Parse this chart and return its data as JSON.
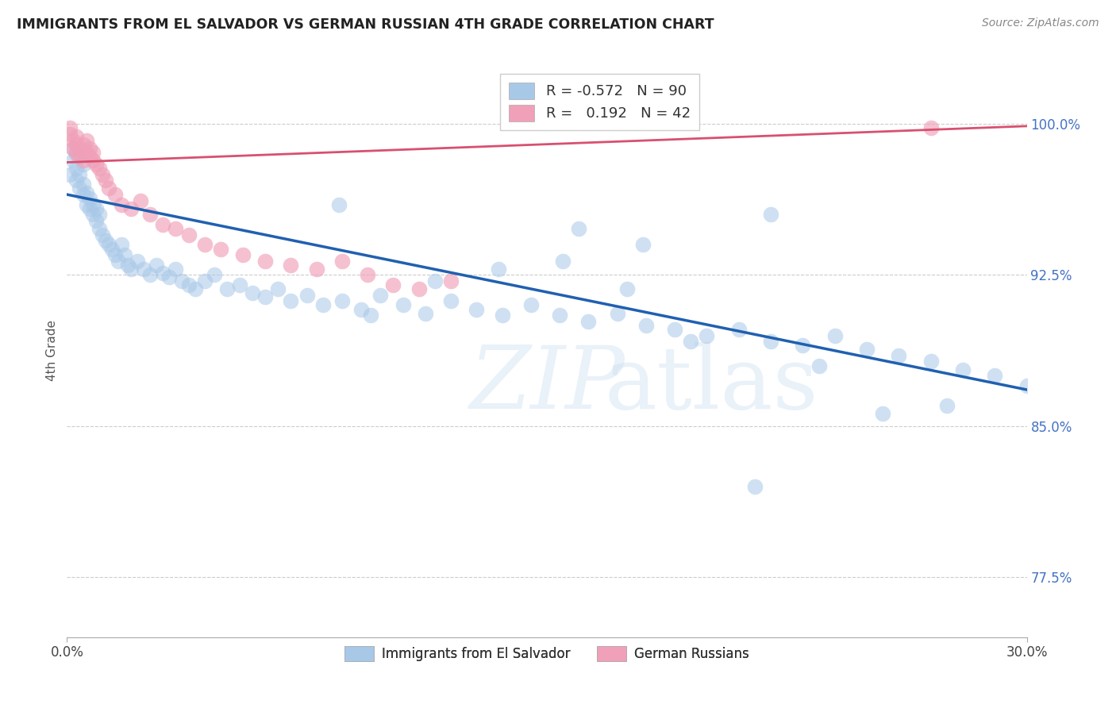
{
  "title": "IMMIGRANTS FROM EL SALVADOR VS GERMAN RUSSIAN 4TH GRADE CORRELATION CHART",
  "source": "Source: ZipAtlas.com",
  "ylabel": "4th Grade",
  "yticks": [
    0.775,
    0.85,
    0.925,
    1.0
  ],
  "ytick_labels": [
    "77.5%",
    "85.0%",
    "92.5%",
    "100.0%"
  ],
  "xlim": [
    0.0,
    0.3
  ],
  "ylim": [
    0.745,
    1.03
  ],
  "legend_blue_label": "Immigrants from El Salvador",
  "legend_pink_label": "German Russians",
  "r_blue": -0.572,
  "n_blue": 90,
  "r_pink": 0.192,
  "n_pink": 42,
  "blue_color": "#a8c8e8",
  "pink_color": "#f0a0b8",
  "blue_line_color": "#2060b0",
  "pink_line_color": "#d85070",
  "blue_line_x0": 0.0,
  "blue_line_y0": 0.965,
  "blue_line_x1": 0.3,
  "blue_line_y1": 0.868,
  "pink_line_x0": 0.0,
  "pink_line_y0": 0.981,
  "pink_line_x1": 0.3,
  "pink_line_y1": 0.999,
  "blue_x": [
    0.001,
    0.002,
    0.002,
    0.003,
    0.003,
    0.003,
    0.004,
    0.004,
    0.005,
    0.005,
    0.005,
    0.006,
    0.006,
    0.007,
    0.007,
    0.008,
    0.008,
    0.009,
    0.009,
    0.01,
    0.01,
    0.011,
    0.012,
    0.013,
    0.014,
    0.015,
    0.016,
    0.017,
    0.018,
    0.019,
    0.02,
    0.022,
    0.024,
    0.026,
    0.028,
    0.03,
    0.032,
    0.034,
    0.036,
    0.038,
    0.04,
    0.043,
    0.046,
    0.05,
    0.054,
    0.058,
    0.062,
    0.066,
    0.07,
    0.075,
    0.08,
    0.086,
    0.092,
    0.098,
    0.105,
    0.112,
    0.12,
    0.128,
    0.136,
    0.145,
    0.154,
    0.163,
    0.172,
    0.181,
    0.19,
    0.2,
    0.21,
    0.22,
    0.23,
    0.24,
    0.25,
    0.26,
    0.27,
    0.28,
    0.29,
    0.3,
    0.16,
    0.18,
    0.22,
    0.085,
    0.095,
    0.115,
    0.135,
    0.155,
    0.175,
    0.195,
    0.215,
    0.235,
    0.255,
    0.275
  ],
  "blue_y": [
    0.975,
    0.982,
    0.988,
    0.972,
    0.978,
    0.985,
    0.968,
    0.975,
    0.965,
    0.97,
    0.98,
    0.96,
    0.966,
    0.958,
    0.963,
    0.955,
    0.96,
    0.952,
    0.958,
    0.948,
    0.955,
    0.945,
    0.942,
    0.94,
    0.938,
    0.935,
    0.932,
    0.94,
    0.935,
    0.93,
    0.928,
    0.932,
    0.928,
    0.925,
    0.93,
    0.926,
    0.924,
    0.928,
    0.922,
    0.92,
    0.918,
    0.922,
    0.925,
    0.918,
    0.92,
    0.916,
    0.914,
    0.918,
    0.912,
    0.915,
    0.91,
    0.912,
    0.908,
    0.915,
    0.91,
    0.906,
    0.912,
    0.908,
    0.905,
    0.91,
    0.905,
    0.902,
    0.906,
    0.9,
    0.898,
    0.895,
    0.898,
    0.892,
    0.89,
    0.895,
    0.888,
    0.885,
    0.882,
    0.878,
    0.875,
    0.87,
    0.948,
    0.94,
    0.955,
    0.96,
    0.905,
    0.922,
    0.928,
    0.932,
    0.918,
    0.892,
    0.82,
    0.88,
    0.856,
    0.86
  ],
  "pink_x": [
    0.001,
    0.001,
    0.002,
    0.002,
    0.003,
    0.003,
    0.003,
    0.004,
    0.004,
    0.005,
    0.005,
    0.006,
    0.006,
    0.007,
    0.007,
    0.008,
    0.008,
    0.009,
    0.01,
    0.011,
    0.012,
    0.013,
    0.015,
    0.017,
    0.02,
    0.023,
    0.026,
    0.03,
    0.034,
    0.038,
    0.043,
    0.048,
    0.055,
    0.062,
    0.07,
    0.078,
    0.086,
    0.094,
    0.102,
    0.11,
    0.12,
    0.27
  ],
  "pink_y": [
    0.998,
    0.995,
    0.992,
    0.988,
    0.986,
    0.99,
    0.994,
    0.984,
    0.988,
    0.982,
    0.99,
    0.986,
    0.992,
    0.984,
    0.988,
    0.982,
    0.986,
    0.98,
    0.978,
    0.975,
    0.972,
    0.968,
    0.965,
    0.96,
    0.958,
    0.962,
    0.955,
    0.95,
    0.948,
    0.945,
    0.94,
    0.938,
    0.935,
    0.932,
    0.93,
    0.928,
    0.932,
    0.925,
    0.92,
    0.918,
    0.922,
    0.998
  ]
}
